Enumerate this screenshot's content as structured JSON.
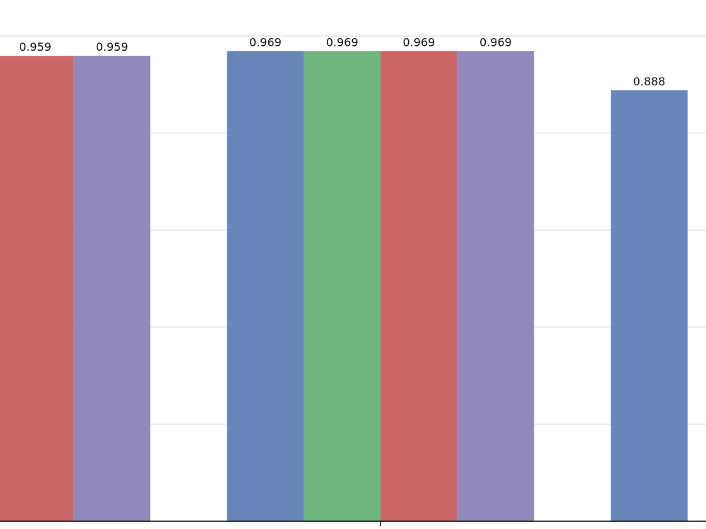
{
  "chart_data": {
    "type": "bar",
    "groups": [
      {
        "bars": [
          {
            "series": 2,
            "value": 0.959,
            "label": "0.959"
          },
          {
            "series": 3,
            "value": 0.959,
            "label": "0.959"
          }
        ]
      },
      {
        "bars": [
          {
            "series": 0,
            "value": 0.969,
            "label": "0.969"
          },
          {
            "series": 1,
            "value": 0.969,
            "label": "0.969"
          },
          {
            "series": 2,
            "value": 0.969,
            "label": "0.969"
          },
          {
            "series": 3,
            "value": 0.969,
            "label": "0.969"
          }
        ]
      },
      {
        "bars": [
          {
            "series": 0,
            "value": 0.888,
            "label": "0.888"
          },
          {
            "series": 1,
            "value": null,
            "label": ""
          }
        ]
      }
    ],
    "series_colors": [
      "#6886ba",
      "#6fb57f",
      "#cb6767",
      "#9388bc"
    ],
    "ylim": [
      0,
      1.0
    ],
    "grid": true,
    "xlabel": "",
    "ylabel": "",
    "title": ""
  }
}
